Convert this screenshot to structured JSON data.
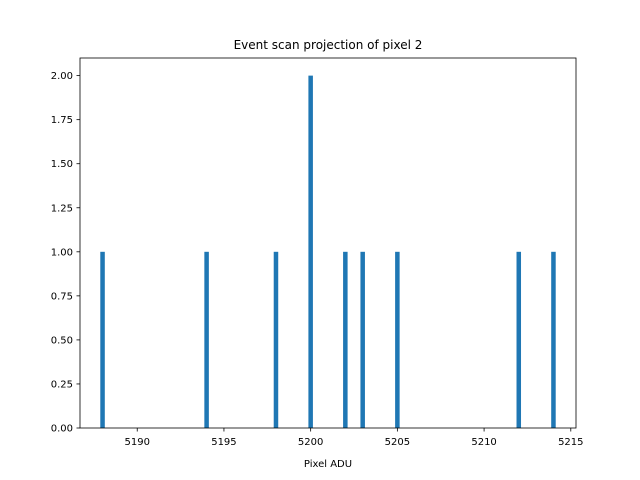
{
  "chart_data": {
    "type": "bar",
    "title": "Event scan projection of pixel 2",
    "xlabel": "Pixel ADU",
    "ylabel": "",
    "bar_color": "#1f77b4",
    "xlim": [
      5186.7,
      5215.3
    ],
    "ylim": [
      0,
      2.1
    ],
    "bar_width": 0.26,
    "x_ticks": [
      5190,
      5195,
      5200,
      5205,
      5210,
      5215
    ],
    "y_ticks": [
      0.0,
      0.25,
      0.5,
      0.75,
      1.0,
      1.25,
      1.5,
      1.75,
      2.0
    ],
    "x_tick_labels": [
      "5190",
      "5195",
      "5200",
      "5205",
      "5210",
      "5215"
    ],
    "y_tick_labels": [
      "0.00",
      "0.25",
      "0.50",
      "0.75",
      "1.00",
      "1.25",
      "1.50",
      "1.75",
      "2.00"
    ],
    "grid": false,
    "points": [
      {
        "x": 5188,
        "value": 1
      },
      {
        "x": 5194,
        "value": 1
      },
      {
        "x": 5198,
        "value": 1
      },
      {
        "x": 5200,
        "value": 2
      },
      {
        "x": 5202,
        "value": 1
      },
      {
        "x": 5203,
        "value": 1
      },
      {
        "x": 5205,
        "value": 1
      },
      {
        "x": 5212,
        "value": 1
      },
      {
        "x": 5214,
        "value": 1
      }
    ]
  }
}
